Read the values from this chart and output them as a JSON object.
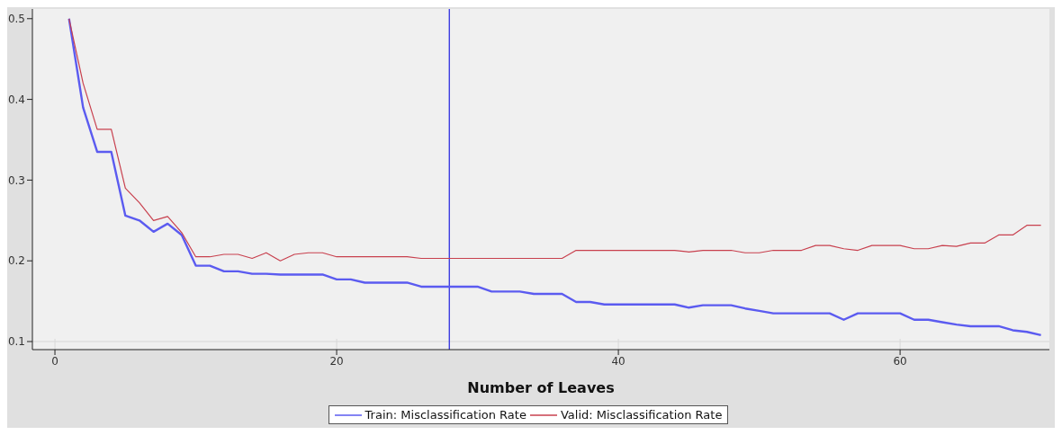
{
  "chart_data": {
    "type": "line",
    "xlabel": "Number of Leaves",
    "x": [
      1,
      2,
      3,
      4,
      5,
      6,
      7,
      8,
      9,
      10,
      11,
      12,
      13,
      14,
      15,
      16,
      17,
      18,
      19,
      20,
      21,
      22,
      23,
      24,
      25,
      26,
      27,
      28,
      29,
      30,
      31,
      32,
      33,
      34,
      35,
      36,
      37,
      38,
      39,
      40,
      41,
      42,
      43,
      44,
      45,
      46,
      47,
      48,
      49,
      50,
      51,
      52,
      53,
      54,
      55,
      56,
      57,
      58,
      59,
      60,
      61,
      62,
      63,
      64,
      65,
      66,
      67,
      68,
      69,
      70
    ],
    "series": [
      {
        "name": "Train: Misclassification Rate",
        "color": "#5b5bf0",
        "values": [
          0.5,
          0.39,
          0.335,
          0.335,
          0.256,
          0.25,
          0.236,
          0.246,
          0.232,
          0.194,
          0.194,
          0.187,
          0.187,
          0.184,
          0.184,
          0.183,
          0.183,
          0.183,
          0.183,
          0.177,
          0.177,
          0.173,
          0.173,
          0.173,
          0.173,
          0.168,
          0.168,
          0.168,
          0.168,
          0.168,
          0.162,
          0.162,
          0.162,
          0.159,
          0.159,
          0.159,
          0.149,
          0.149,
          0.146,
          0.146,
          0.146,
          0.146,
          0.146,
          0.146,
          0.142,
          0.145,
          0.145,
          0.145,
          0.141,
          0.138,
          0.135,
          0.135,
          0.135,
          0.135,
          0.135,
          0.127,
          0.135,
          0.135,
          0.135,
          0.135,
          0.127,
          0.127,
          0.124,
          0.121,
          0.119,
          0.119,
          0.119,
          0.114,
          0.112,
          0.108
        ]
      },
      {
        "name": "Valid: Misclassification Rate",
        "color": "#c8404e",
        "values": [
          0.5,
          0.42,
          0.363,
          0.363,
          0.29,
          0.272,
          0.25,
          0.255,
          0.235,
          0.205,
          0.205,
          0.208,
          0.208,
          0.203,
          0.21,
          0.2,
          0.208,
          0.21,
          0.21,
          0.205,
          0.205,
          0.205,
          0.205,
          0.205,
          0.205,
          0.203,
          0.203,
          0.203,
          0.203,
          0.203,
          0.203,
          0.203,
          0.203,
          0.203,
          0.203,
          0.203,
          0.213,
          0.213,
          0.213,
          0.213,
          0.213,
          0.213,
          0.213,
          0.213,
          0.211,
          0.213,
          0.213,
          0.213,
          0.21,
          0.21,
          0.213,
          0.213,
          0.213,
          0.219,
          0.219,
          0.215,
          0.213,
          0.219,
          0.219,
          0.219,
          0.215,
          0.215,
          0.219,
          0.218,
          0.222,
          0.222,
          0.232,
          0.232,
          0.244,
          0.244
        ]
      }
    ],
    "xlim": [
      -1.6,
      70.6
    ],
    "xticks": [
      0,
      20,
      40,
      60
    ],
    "ylim": [
      0.09,
      0.512
    ],
    "yticks": [
      0.1,
      0.2,
      0.3,
      0.4,
      0.5
    ],
    "grid": true,
    "legend": "bottom",
    "marker": "none",
    "line_style": "solid",
    "ref_lines": [
      {
        "axis": "x",
        "value": 28,
        "color": "#3030e0"
      }
    ]
  }
}
